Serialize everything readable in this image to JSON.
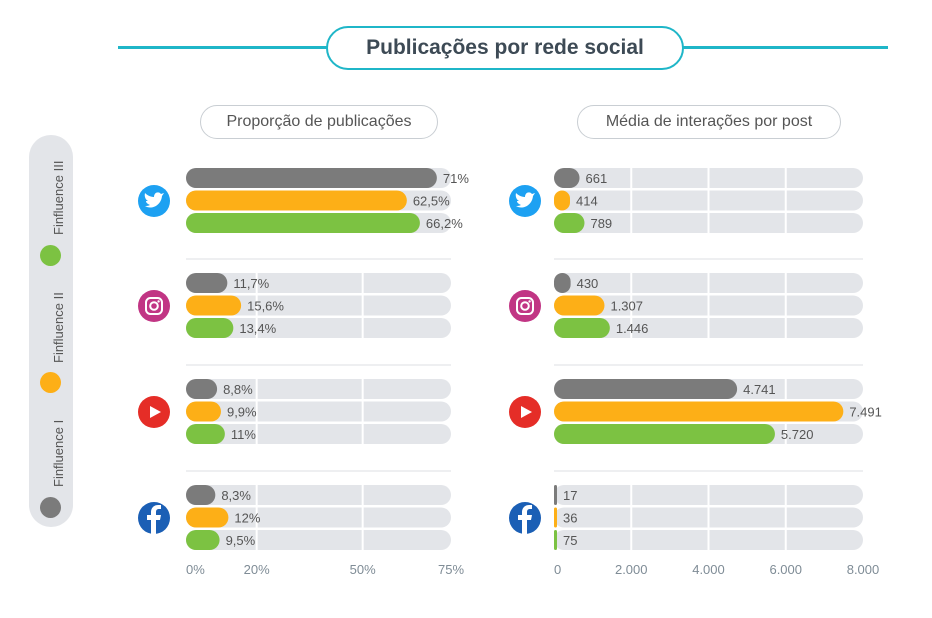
{
  "title": "Publicações por rede social",
  "legend": [
    {
      "label": "Finfluence III",
      "color": "#7cc242"
    },
    {
      "label": "Finfluence II",
      "color": "#fdaf17"
    },
    {
      "label": "Finfluence I",
      "color": "#7b7b7b"
    }
  ],
  "chart_data": [
    {
      "type": "bar",
      "title": "Proporção de publicações",
      "categories": [
        "twitter",
        "instagram",
        "youtube",
        "facebook"
      ],
      "x_ticks": [
        "0%",
        "20%",
        "50%",
        "75%"
      ],
      "xlim": [
        0,
        75
      ],
      "series": [
        {
          "name": "Finfluence I",
          "color": "#7b7b7b",
          "values": [
            71,
            11.7,
            8.8,
            8.3
          ],
          "labels": [
            "71%",
            "11,7%",
            "8,8%",
            "8,3%"
          ]
        },
        {
          "name": "Finfluence II",
          "color": "#fdaf17",
          "values": [
            62.5,
            15.6,
            9.9,
            12
          ],
          "labels": [
            "62,5%",
            "15,6%",
            "9,9%",
            "12%"
          ]
        },
        {
          "name": "Finfluence III",
          "color": "#7cc242",
          "values": [
            66.2,
            13.4,
            11,
            9.5
          ],
          "labels": [
            "66,2%",
            "13,4%",
            "11%",
            "9,5%"
          ]
        }
      ]
    },
    {
      "type": "bar",
      "title": "Média de interações por post",
      "categories": [
        "twitter",
        "instagram",
        "youtube",
        "facebook"
      ],
      "x_ticks": [
        "0",
        "2.000",
        "4.000",
        "6.000",
        "8.000"
      ],
      "xlim": [
        0,
        8000
      ],
      "series": [
        {
          "name": "Finfluence I",
          "color": "#7b7b7b",
          "values": [
            661,
            430,
            4741,
            17
          ],
          "labels": [
            "661",
            "430",
            "4.741",
            "17"
          ]
        },
        {
          "name": "Finfluence II",
          "color": "#fdaf17",
          "values": [
            414,
            1307,
            7491,
            36
          ],
          "labels": [
            "414",
            "1.307",
            "7.491",
            "36"
          ]
        },
        {
          "name": "Finfluence III",
          "color": "#7cc242",
          "values": [
            789,
            1446,
            5720,
            75
          ],
          "labels": [
            "789",
            "1.446",
            "5.720",
            "75"
          ]
        }
      ]
    }
  ],
  "icons": [
    {
      "name": "twitter-icon",
      "color": "#1da1f2"
    },
    {
      "name": "instagram-icon",
      "color": "#c13584"
    },
    {
      "name": "youtube-icon",
      "color": "#e52d27"
    },
    {
      "name": "facebook-icon",
      "color": "#1b5fb5"
    }
  ]
}
